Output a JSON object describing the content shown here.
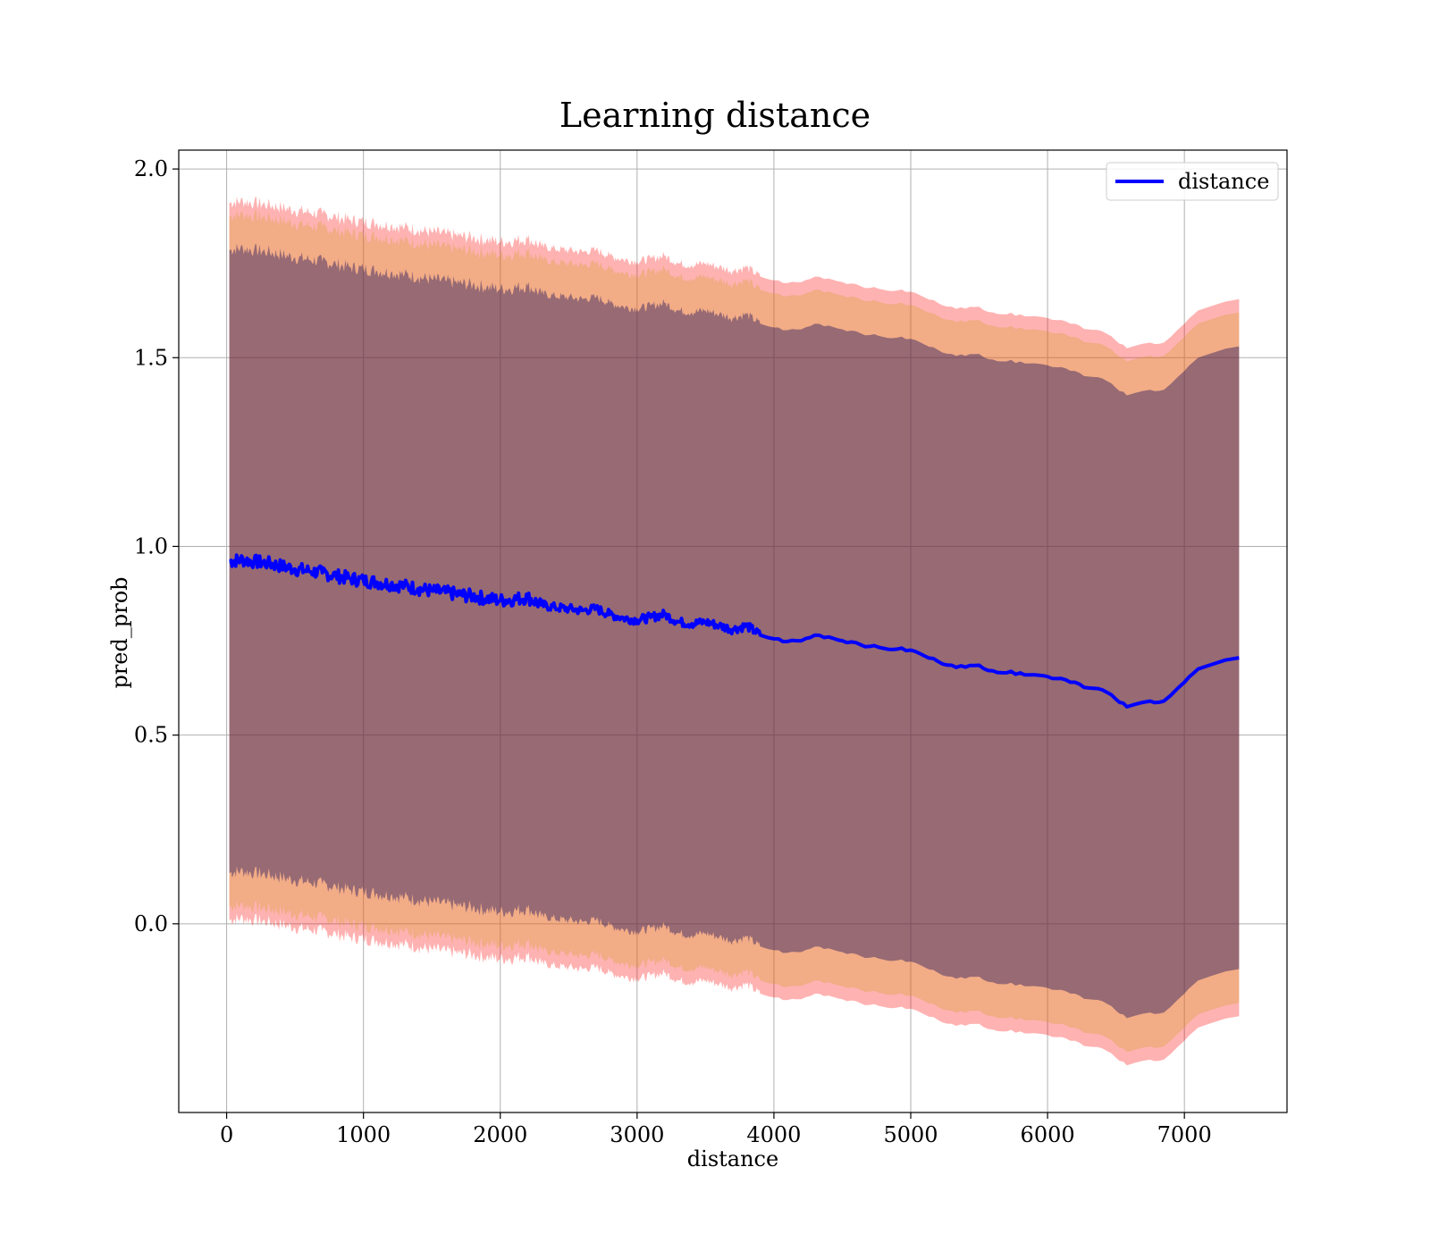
{
  "chart_data": {
    "type": "line",
    "title": "Learning distance",
    "xlabel": "distance",
    "ylabel": "pred_prob",
    "xlim": [
      -350,
      7750
    ],
    "ylim": [
      -0.5,
      2.05
    ],
    "x_ticks": [
      0,
      1000,
      2000,
      3000,
      4000,
      5000,
      6000,
      7000
    ],
    "x_tick_labels": [
      "0",
      "1000",
      "2000",
      "3000",
      "4000",
      "5000",
      "6000",
      "7000"
    ],
    "y_ticks": [
      0.0,
      0.5,
      1.0,
      1.5,
      2.0
    ],
    "y_tick_labels": [
      "0.0",
      "0.5",
      "1.0",
      "1.5",
      "2.0"
    ],
    "grid": true,
    "legend_position": "top-right",
    "series": [
      {
        "name": "distance",
        "color": "#0000ff",
        "x": [
          20,
          100,
          200,
          300,
          400,
          500,
          600,
          700,
          800,
          900,
          1000,
          1100,
          1200,
          1300,
          1400,
          1500,
          1600,
          1700,
          1800,
          1900,
          2000,
          2100,
          2200,
          2300,
          2400,
          2500,
          2600,
          2700,
          2800,
          2900,
          3000,
          3100,
          3200,
          3300,
          3400,
          3500,
          3600,
          3700,
          3800,
          3900,
          4000,
          4100,
          4200,
          4300,
          4400,
          4500,
          4600,
          4700,
          4800,
          4900,
          5000,
          5100,
          5200,
          5300,
          5400,
          5500,
          5600,
          5700,
          5800,
          5900,
          6000,
          6100,
          6200,
          6300,
          6400,
          6500,
          6580,
          6750,
          6850,
          7000,
          7100,
          7400
        ],
        "values": [
          0.96,
          0.965,
          0.96,
          0.955,
          0.948,
          0.94,
          0.935,
          0.93,
          0.922,
          0.915,
          0.91,
          0.905,
          0.9,
          0.895,
          0.888,
          0.882,
          0.878,
          0.872,
          0.868,
          0.862,
          0.857,
          0.86,
          0.865,
          0.845,
          0.838,
          0.835,
          0.83,
          0.835,
          0.82,
          0.81,
          0.805,
          0.812,
          0.82,
          0.8,
          0.795,
          0.8,
          0.79,
          0.78,
          0.79,
          0.765,
          0.755,
          0.748,
          0.75,
          0.765,
          0.76,
          0.75,
          0.745,
          0.735,
          0.73,
          0.728,
          0.725,
          0.71,
          0.695,
          0.685,
          0.68,
          0.685,
          0.67,
          0.665,
          0.665,
          0.66,
          0.655,
          0.65,
          0.64,
          0.625,
          0.62,
          0.595,
          0.575,
          0.59,
          0.59,
          0.64,
          0.675,
          0.705
        ]
      }
    ],
    "bands": [
      {
        "color": "#ff0000",
        "opacity": 0.3,
        "offset": 0.95
      },
      {
        "color": "#d4a020",
        "opacity": 0.3,
        "offset": 0.915
      },
      {
        "color": "#1a0e5e",
        "opacity": 0.42,
        "offset": 0.825
      }
    ]
  }
}
